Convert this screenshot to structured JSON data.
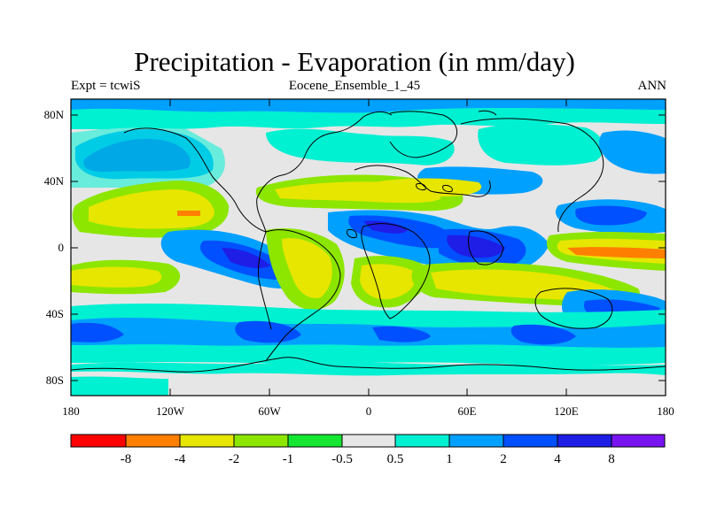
{
  "title": "Precipitation - Evaporation (in mm/day)",
  "subtitle_left": "Expt = tcwiS",
  "subtitle_center": "Eocene_Ensemble_1_45",
  "subtitle_right": "ANN",
  "map": {
    "projection": "cylindrical-equidistant",
    "lon_range": [
      -180,
      180
    ],
    "lat_range": [
      -90,
      90
    ],
    "y_ticks": [
      "80N",
      "40N",
      "0",
      "40S",
      "80S"
    ],
    "x_ticks": [
      "180",
      "120W",
      "60W",
      "0",
      "60E",
      "120E",
      "180"
    ],
    "background_color": "#e6e6e6",
    "coastline_color": "#000000"
  },
  "colorbar": {
    "labels": [
      "-8",
      "-4",
      "-2",
      "-1",
      "-0.5",
      "0.5",
      "1",
      "2",
      "4",
      "8"
    ],
    "colors": [
      "#ff0000",
      "#ff7f00",
      "#e6e600",
      "#8ce600",
      "#14e632",
      "#e6e6e6",
      "#00f0d2",
      "#00a0ff",
      "#0050ff",
      "#1e1ee6",
      "#7814f0"
    ]
  }
}
